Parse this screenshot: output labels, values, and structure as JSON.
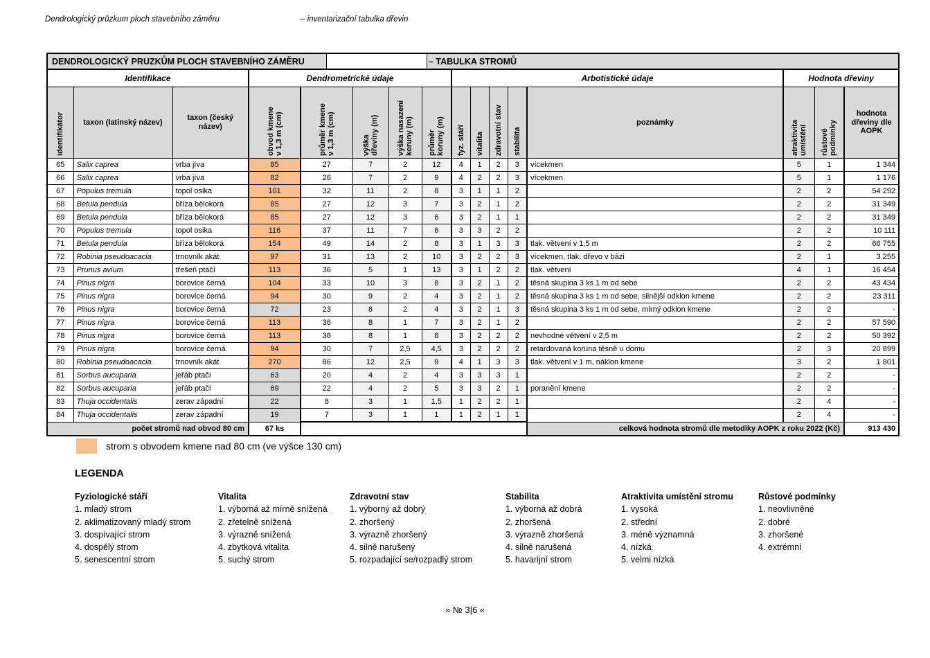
{
  "page_header": {
    "left": "Dendrologický průzkum ploch stavebního záměru",
    "right": "– inventarizační tabulka dřevin"
  },
  "table": {
    "title_left": "DENDROLOGICKÝ PRUZKŮM PLOCH STAVEBNÍHO ZÁMĚRU",
    "title_right": "– TABULKA STROMŮ",
    "groups": [
      "Identifikace",
      "Dendrometrické údaje",
      "Arbotistické údaje",
      "Hodnota dřeviny"
    ],
    "columns": [
      "identifikátor",
      "taxon (latinský název)",
      "taxon (český\nnázev)",
      "obvod kmene\nv 1,3 m (cm)",
      "průměr kmene\nv 1,3 m (cm)",
      "výška\ndřeviny (m)",
      "výška nasazení\nkoruny (m)",
      "průměr\nkoruny (m)",
      "fyz. stáří",
      "vitalita",
      "zdravotní stav",
      "stabilita",
      "poznámky",
      "atraktivita\numístění",
      "růstové\npodmínky",
      "hodnota\ndřeviny dle\nAOPK"
    ],
    "rows": [
      {
        "id": "65",
        "latin": "Salix caprea",
        "czech": "vrba jíva",
        "obvod": "85",
        "hl": "o",
        "prumer": "27",
        "vyska": "7",
        "nasazeni": "2",
        "koruna": "12",
        "fyz": "4",
        "vitalita": "1",
        "zdravotni": "2",
        "stabilita": "3",
        "poznamky": "vícekmen",
        "atraktivita": "5",
        "rustove": "1",
        "hodnota": "1 344"
      },
      {
        "id": "66",
        "latin": "Salix caprea",
        "czech": "vrba jíva",
        "obvod": "82",
        "hl": "o",
        "prumer": "26",
        "vyska": "7",
        "nasazeni": "2",
        "koruna": "9",
        "fyz": "4",
        "vitalita": "2",
        "zdravotni": "2",
        "stabilita": "3",
        "poznamky": "vícekmen",
        "atraktivita": "5",
        "rustove": "1",
        "hodnota": "1 176"
      },
      {
        "id": "67",
        "latin": "Populus tremula",
        "czech": "topol osika",
        "obvod": "101",
        "hl": "o",
        "prumer": "32",
        "vyska": "11",
        "nasazeni": "2",
        "koruna": "8",
        "fyz": "3",
        "vitalita": "1",
        "zdravotni": "1",
        "stabilita": "2",
        "poznamky": "",
        "atraktivita": "2",
        "rustove": "2",
        "hodnota": "54 292"
      },
      {
        "id": "68",
        "latin": "Betula pendula",
        "czech": "bříza bělokorá",
        "obvod": "85",
        "hl": "o",
        "prumer": "27",
        "vyska": "12",
        "nasazeni": "3",
        "koruna": "7",
        "fyz": "3",
        "vitalita": "2",
        "zdravotni": "1",
        "stabilita": "2",
        "poznamky": "",
        "atraktivita": "2",
        "rustove": "2",
        "hodnota": "31 349"
      },
      {
        "id": "69",
        "latin": "Betula pendula",
        "czech": "bříza bělokorá",
        "obvod": "85",
        "hl": "o",
        "prumer": "27",
        "vyska": "12",
        "nasazeni": "3",
        "koruna": "6",
        "fyz": "3",
        "vitalita": "2",
        "zdravotni": "1",
        "stabilita": "1",
        "poznamky": "",
        "atraktivita": "2",
        "rustove": "2",
        "hodnota": "31 349"
      },
      {
        "id": "70",
        "latin": "Populus tremula",
        "czech": "topol osika",
        "obvod": "116",
        "hl": "o",
        "prumer": "37",
        "vyska": "11",
        "nasazeni": "7",
        "koruna": "6",
        "fyz": "3",
        "vitalita": "3",
        "zdravotni": "2",
        "stabilita": "2",
        "poznamky": "",
        "atraktivita": "2",
        "rustove": "2",
        "hodnota": "10 111"
      },
      {
        "id": "71",
        "latin": "Betula pendula",
        "czech": "bříza bělokorá",
        "obvod": "154",
        "hl": "o",
        "prumer": "49",
        "vyska": "14",
        "nasazeni": "2",
        "koruna": "8",
        "fyz": "3",
        "vitalita": "1",
        "zdravotni": "3",
        "stabilita": "3",
        "poznamky": "tlak. větvení v 1,5 m",
        "atraktivita": "2",
        "rustove": "2",
        "hodnota": "66 755"
      },
      {
        "id": "72",
        "latin": "Robinia pseudoacacia",
        "czech": "trnovník akát",
        "obvod": "97",
        "hl": "o",
        "prumer": "31",
        "vyska": "13",
        "nasazeni": "2",
        "koruna": "10",
        "fyz": "3",
        "vitalita": "2",
        "zdravotni": "2",
        "stabilita": "3",
        "poznamky": "vícekmen, tlak. dřevo v bázi",
        "atraktivita": "2",
        "rustove": "1",
        "hodnota": "3 255"
      },
      {
        "id": "73",
        "latin": "Prunus avium",
        "czech": "třešeň ptačí",
        "obvod": "113",
        "hl": "o",
        "prumer": "36",
        "vyska": "5",
        "nasazeni": "1",
        "koruna": "13",
        "fyz": "3",
        "vitalita": "1",
        "zdravotni": "2",
        "stabilita": "2",
        "poznamky": "tlak. větvení",
        "atraktivita": "4",
        "rustove": "1",
        "hodnota": "16 454"
      },
      {
        "id": "74",
        "latin": "Pinus nigra",
        "czech": "borovice černá",
        "obvod": "104",
        "hl": "o",
        "prumer": "33",
        "vyska": "10",
        "nasazeni": "3",
        "koruna": "8",
        "fyz": "3",
        "vitalita": "2",
        "zdravotni": "1",
        "stabilita": "2",
        "poznamky": "těsná skupina 3 ks 1 m od sebe",
        "atraktivita": "2",
        "rustove": "2",
        "hodnota": "43 434"
      },
      {
        "id": "75",
        "latin": "Pinus nigra",
        "czech": "borovice černá",
        "obvod": "94",
        "hl": "o",
        "prumer": "30",
        "vyska": "9",
        "nasazeni": "2",
        "koruna": "4",
        "fyz": "3",
        "vitalita": "2",
        "zdravotni": "1",
        "stabilita": "2",
        "poznamky": "těsná skupina 3 ks 1 m od sebe, silnější odklon kmene",
        "atraktivita": "2",
        "rustove": "2",
        "hodnota": "23 311"
      },
      {
        "id": "76",
        "latin": "Pinus nigra",
        "czech": "borovice černá",
        "obvod": "72",
        "hl": "g",
        "prumer": "23",
        "vyska": "8",
        "nasazeni": "2",
        "koruna": "4",
        "fyz": "3",
        "vitalita": "2",
        "zdravotni": "1",
        "stabilita": "3",
        "poznamky": "těsná skupina 3 ks 1 m od sebe, mírný odklon kmene",
        "atraktivita": "2",
        "rustove": "2",
        "hodnota": "-"
      },
      {
        "id": "77",
        "latin": "Pinus nigra",
        "czech": "borovice černá",
        "obvod": "113",
        "hl": "o",
        "prumer": "36",
        "vyska": "8",
        "nasazeni": "1",
        "koruna": "7",
        "fyz": "3",
        "vitalita": "2",
        "zdravotni": "1",
        "stabilita": "2",
        "poznamky": "",
        "atraktivita": "2",
        "rustove": "2",
        "hodnota": "57 590"
      },
      {
        "id": "78",
        "latin": "Pinus nigra",
        "czech": "borovice černá",
        "obvod": "113",
        "hl": "o",
        "prumer": "36",
        "vyska": "8",
        "nasazeni": "1",
        "koruna": "8",
        "fyz": "3",
        "vitalita": "2",
        "zdravotni": "2",
        "stabilita": "2",
        "poznamky": "nevhodné větvení v 2,5 m",
        "atraktivita": "2",
        "rustove": "2",
        "hodnota": "50 392"
      },
      {
        "id": "79",
        "latin": "Pinus nigra",
        "czech": "borovice černá",
        "obvod": "94",
        "hl": "o",
        "prumer": "30",
        "vyska": "7",
        "nasazeni": "2,5",
        "koruna": "4,5",
        "fyz": "3",
        "vitalita": "2",
        "zdravotni": "2",
        "stabilita": "2",
        "poznamky": "retardovaná koruna těsně u domu",
        "atraktivita": "2",
        "rustove": "3",
        "hodnota": "20 899"
      },
      {
        "id": "80",
        "latin": "Robinia pseudoacacia",
        "czech": "trnovník akát",
        "obvod": "270",
        "hl": "o",
        "prumer": "86",
        "vyska": "12",
        "nasazeni": "2,5",
        "koruna": "9",
        "fyz": "4",
        "vitalita": "1",
        "zdravotni": "3",
        "stabilita": "3",
        "poznamky": "tlak. větvení v 1 m, náklon kmene",
        "atraktivita": "3",
        "rustove": "2",
        "hodnota": "1 801"
      },
      {
        "id": "81",
        "latin": "Sorbus aucuparia",
        "czech": "jeřáb ptačí",
        "obvod": "63",
        "hl": "g",
        "prumer": "20",
        "vyska": "4",
        "nasazeni": "2",
        "koruna": "4",
        "fyz": "3",
        "vitalita": "3",
        "zdravotni": "3",
        "stabilita": "1",
        "poznamky": "",
        "atraktivita": "2",
        "rustove": "2",
        "hodnota": "-"
      },
      {
        "id": "82",
        "latin": "Sorbus aucuparia",
        "czech": "jeřáb ptačí",
        "obvod": "69",
        "hl": "g",
        "prumer": "22",
        "vyska": "4",
        "nasazeni": "2",
        "koruna": "5",
        "fyz": "3",
        "vitalita": "3",
        "zdravotni": "2",
        "stabilita": "1",
        "poznamky": "poranění kmene",
        "atraktivita": "2",
        "rustove": "2",
        "hodnota": "-"
      },
      {
        "id": "83",
        "latin": "Thuja occidentalis",
        "czech": "zerav západní",
        "obvod": "22",
        "hl": "g",
        "prumer": "8",
        "vyska": "3",
        "nasazeni": "1",
        "koruna": "1,5",
        "fyz": "1",
        "vitalita": "2",
        "zdravotni": "2",
        "stabilita": "1",
        "poznamky": "",
        "atraktivita": "2",
        "rustove": "4",
        "hodnota": "-"
      },
      {
        "id": "84",
        "latin": "Thuja occidentalis",
        "czech": "zerav západní",
        "obvod": "19",
        "hl": "g",
        "prumer": "7",
        "vyska": "3",
        "nasazeni": "1",
        "koruna": "1",
        "fyz": "1",
        "vitalita": "2",
        "zdravotni": "1",
        "stabilita": "1",
        "poznamky": "",
        "atraktivita": "2",
        "rustove": "4",
        "hodnota": "-"
      }
    ],
    "footer": {
      "count_label": "počet stromů nad obvod 80 cm",
      "count_value": "67 ks",
      "total_label": "celková hodnota stromů dle metodiky AOPK z roku 2022 (Kč)",
      "total_value": "913 430"
    }
  },
  "legend_swatch": {
    "text": "strom s obvodem kmene nad 80 cm (ve výšce 130 cm)"
  },
  "legend": {
    "title": "LEGENDA",
    "groups": [
      {
        "title": "Fyziologické stáří",
        "items": [
          "1. mladý strom",
          "2. aklimatizovaný mladý strom",
          "3. dospívající strom",
          "4. dospělý strom",
          "5. senescentní strom"
        ]
      },
      {
        "title": "Vitalita",
        "items": [
          "1. výborná až mírně snížená",
          "2. zřetelně snížená",
          "3. výrazně snížená",
          "4. zbytková vitalita",
          "5. suchý strom"
        ]
      },
      {
        "title": "Zdravotní stav",
        "items": [
          "1. výborný až dobrý",
          "2. zhoršený",
          "3. výrazně zhoršený",
          "4. silně narušený",
          "5. rozpadající se/rozpadlý strom"
        ]
      },
      {
        "title": "Stabilita",
        "items": [
          "1. výborná až dobrá",
          "2. zhoršená",
          "3. výrazně zhoršená",
          "4. silně narušená",
          "5. havarijní strom"
        ]
      },
      {
        "title": "Atraktivita umístění stromu",
        "items": [
          "1. vysoká",
          "2. střední",
          "3. méně významná",
          "4. nízká",
          "5. velmi nízká"
        ]
      },
      {
        "title": "Růstové podmínky",
        "items": [
          "1. neovlivněné",
          "2. dobré",
          "3. zhoršené",
          "4. extrémní"
        ]
      }
    ]
  },
  "page_footer": "» № 3|6 «",
  "colors": {
    "highlight_orange": "#fabf8f",
    "header_gray": "#d9d9d9",
    "column_shade": "#f2f2f2"
  }
}
